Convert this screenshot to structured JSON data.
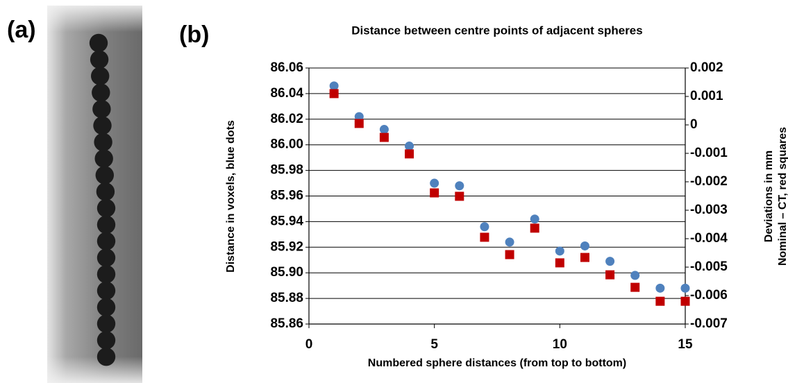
{
  "panel_labels": [
    "(a)",
    "(b)"
  ],
  "chart_data": {
    "type": "scatter",
    "title": "Distance between centre points of adjacent spheres",
    "x_label": "Numbered sphere distances (from top to bottom)",
    "y_label": "Distance in voxels, blue dots",
    "y2_label": [
      "Deviations in mm",
      "Nominal – CT, red squares"
    ],
    "x": [
      1,
      2,
      3,
      4,
      5,
      6,
      7,
      8,
      9,
      10,
      11,
      12,
      13,
      14,
      15
    ],
    "series": [
      {
        "name": "blue dots",
        "color": "#4f81bd",
        "marker": "circle",
        "values": [
          86.046,
          86.022,
          86.012,
          85.999,
          85.97,
          85.968,
          85.936,
          85.924,
          85.942,
          85.917,
          85.921,
          85.909,
          85.898,
          85.888,
          85.888
        ]
      },
      {
        "name": "red squares",
        "color": "#c00000",
        "marker": "square",
        "axis": "y2",
        "values": [
          0.0011,
          5e-05,
          -0.00044,
          -0.00102,
          -0.00239,
          -0.00251,
          -0.00395,
          -0.00456,
          -0.00363,
          -0.00485,
          -0.00466,
          -0.00527,
          -0.00571,
          -0.0062,
          -0.0062
        ]
      }
    ],
    "xlim": [
      0,
      15
    ],
    "xticks": [
      0,
      5,
      10,
      15
    ],
    "ylim": [
      85.86,
      86.06
    ],
    "yticks": [
      {
        "value": 85.86,
        "label": "85.86"
      },
      {
        "value": 85.88,
        "label": "85.88"
      },
      {
        "value": 85.9,
        "label": "85.90"
      },
      {
        "value": 85.92,
        "label": "85.92"
      },
      {
        "value": 85.94,
        "label": "85.94"
      },
      {
        "value": 85.96,
        "label": "85.96"
      },
      {
        "value": 85.98,
        "label": "85.98"
      },
      {
        "value": 86.0,
        "label": "86.00"
      },
      {
        "value": 86.02,
        "label": "86.02"
      },
      {
        "value": 86.04,
        "label": "86.04"
      },
      {
        "value": 86.06,
        "label": "86.06"
      }
    ],
    "y2lim": [
      -0.007,
      0.002
    ],
    "y2ticks": [
      -0.007,
      -0.006,
      -0.005,
      -0.004,
      -0.003,
      -0.002,
      -0.001,
      0,
      0.001,
      0.002
    ],
    "grid": true
  }
}
